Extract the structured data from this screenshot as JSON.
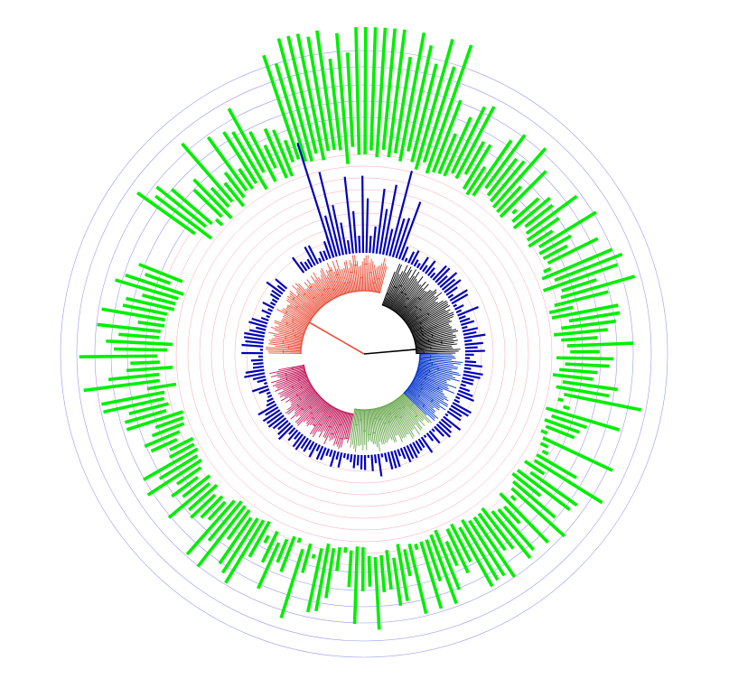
{
  "figure": {
    "type": "circular-phylogenetic-tree-with-bar-rings",
    "colors": {
      "background": "#ffffff",
      "outer_bars": "#00ee00",
      "inner_bars": "#0000bb",
      "outer_grid": "#9999ee",
      "inner_grid": "#f4a6b6",
      "root_branch": "#000000",
      "clades": [
        "#000000",
        "#0033cc",
        "#6aa84f",
        "#c2185b",
        "#e8503a"
      ]
    },
    "clades": [
      {
        "id": "black",
        "color": "#000000"
      },
      {
        "id": "blue",
        "color": "#0033cc"
      },
      {
        "id": "green",
        "color": "#6aa84f"
      },
      {
        "id": "magenta",
        "color": "#c2185b"
      },
      {
        "id": "red",
        "color": "#e8503a"
      }
    ],
    "outer_grid_rings": 6,
    "inner_grid_rings": 9,
    "text": []
  }
}
